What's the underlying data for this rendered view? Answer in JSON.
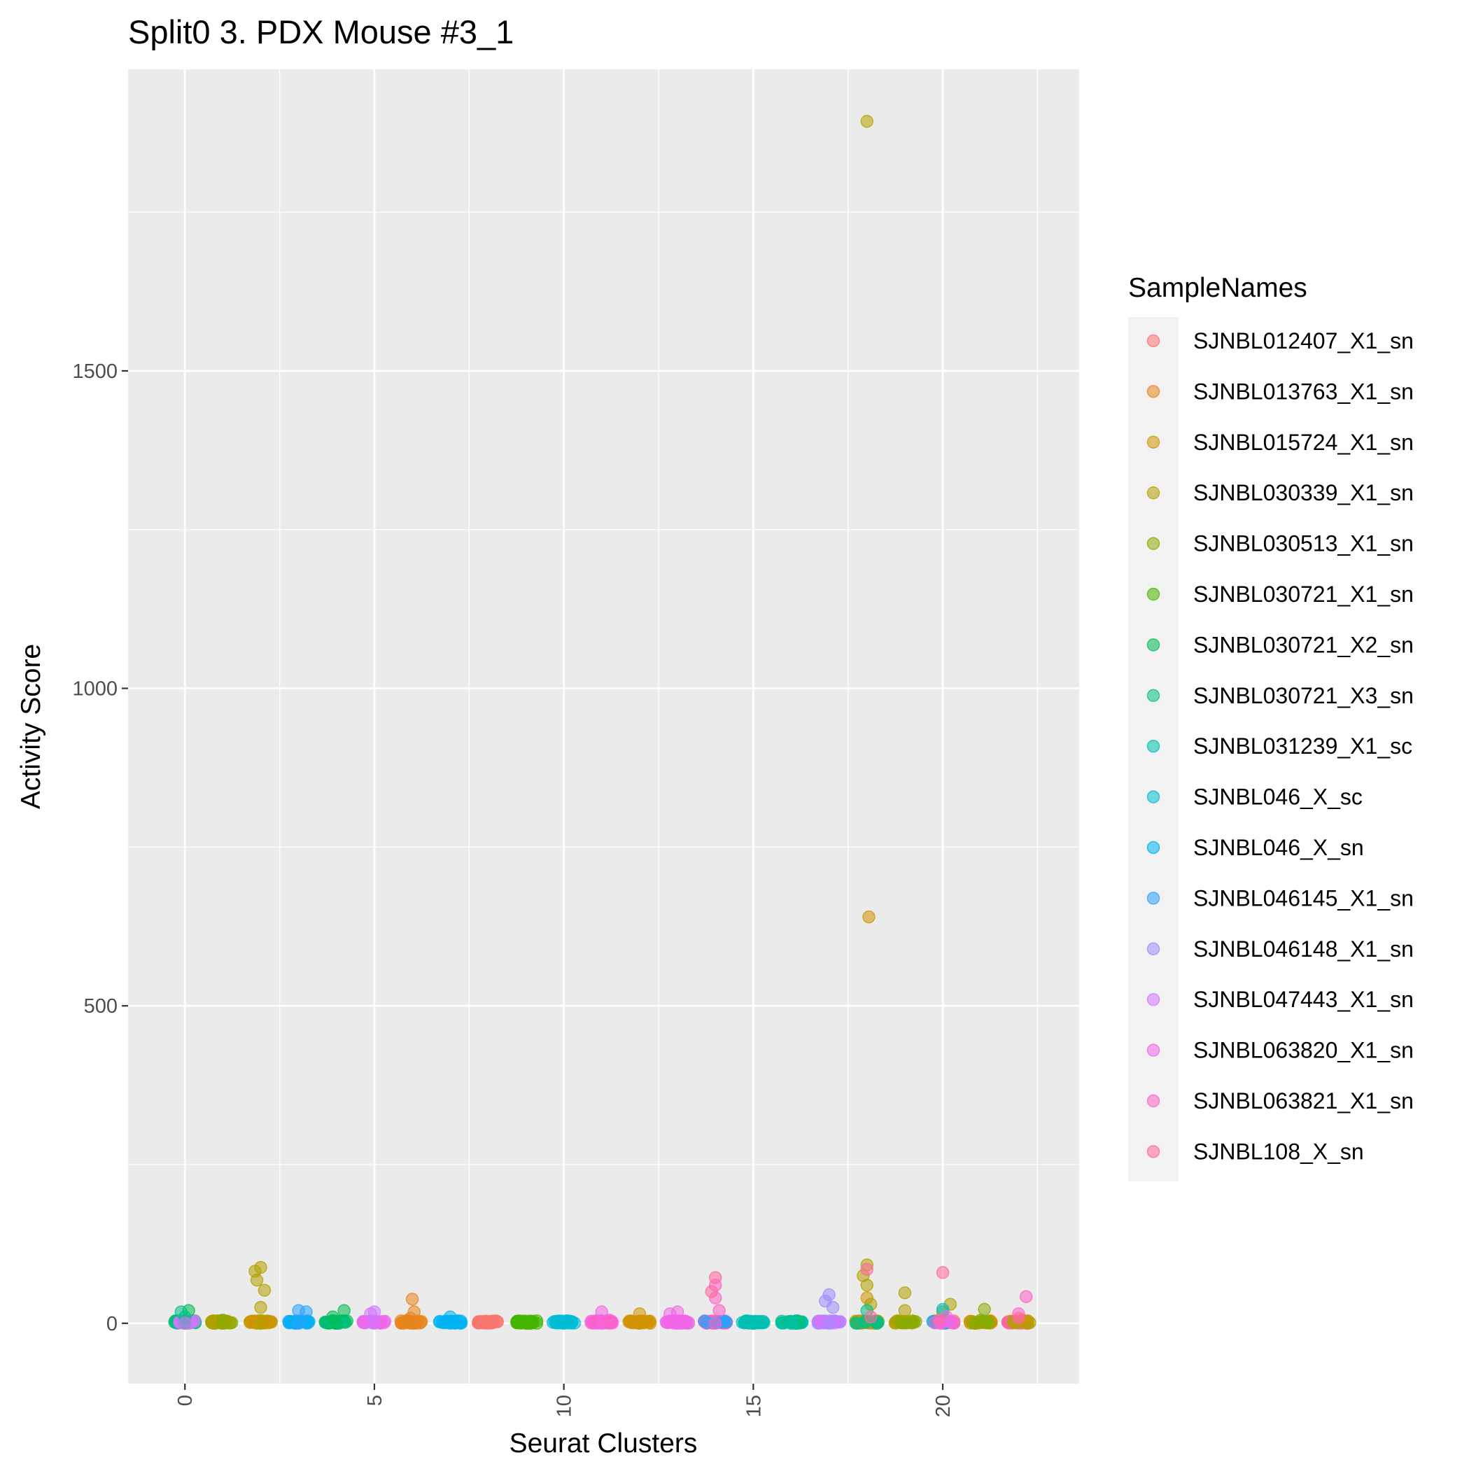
{
  "chart_data": {
    "type": "scatter",
    "title": "Split0 3. PDX Mouse #3_1",
    "xlabel": "Seurat Clusters",
    "ylabel": "Activity Score",
    "xlim": [
      -1.5,
      23.6
    ],
    "ylim": [
      -95,
      1975
    ],
    "x_ticks": [
      0,
      5,
      10,
      15,
      20
    ],
    "x_tick_labels": [
      "0",
      "5",
      "10",
      "15",
      "20"
    ],
    "y_ticks": [
      0,
      500,
      1000,
      1500
    ],
    "y_tick_labels": [
      "0",
      "500",
      "1000",
      "1500"
    ],
    "grid": true,
    "legend_position": "right",
    "legend_title": "SampleNames",
    "series": [
      {
        "name": "SJNBL012407_X1_sn",
        "color": "#F8766D",
        "points": [
          [
            8,
            0
          ],
          [
            8.1,
            1
          ],
          [
            7.9,
            2
          ]
        ]
      },
      {
        "name": "SJNBL013763_X1_sn",
        "color": "#E7851E",
        "points": [
          [
            6,
            0
          ],
          [
            6,
            38
          ],
          [
            6.05,
            18
          ],
          [
            5.95,
            8
          ]
        ]
      },
      {
        "name": "SJNBL015724_X1_sn",
        "color": "#D09400",
        "points": [
          [
            12,
            0
          ],
          [
            12,
            15
          ],
          [
            18.05,
            640
          ],
          [
            18,
            40
          ],
          [
            22.1,
            5
          ]
        ]
      },
      {
        "name": "SJNBL030339_X1_sn",
        "color": "#B2A100",
        "points": [
          [
            2,
            0
          ],
          [
            2,
            88
          ],
          [
            1.85,
            82
          ],
          [
            1.9,
            68
          ],
          [
            2.1,
            52
          ],
          [
            2,
            25
          ],
          [
            18,
            1893
          ],
          [
            18,
            92
          ],
          [
            17.9,
            75
          ],
          [
            18,
            60
          ],
          [
            18.1,
            30
          ],
          [
            19,
            48
          ],
          [
            19,
            20
          ],
          [
            20.2,
            30
          ]
        ]
      },
      {
        "name": "SJNBL030513_X1_sn",
        "color": "#89AC00",
        "points": [
          [
            1,
            0
          ],
          [
            1,
            5
          ],
          [
            21.1,
            22
          ],
          [
            21,
            5
          ],
          [
            20,
            18
          ]
        ]
      },
      {
        "name": "SJNBL030721_X1_sn",
        "color": "#45B500",
        "points": [
          [
            9,
            0
          ],
          [
            9,
            2
          ]
        ]
      },
      {
        "name": "SJNBL030721_X2_sn",
        "color": "#00BC51",
        "points": [
          [
            0,
            0
          ],
          [
            0.1,
            20
          ],
          [
            4,
            0
          ],
          [
            4.2,
            20
          ],
          [
            3.9,
            10
          ]
        ]
      },
      {
        "name": "SJNBL030721_X3_sn",
        "color": "#00C087",
        "points": [
          [
            0,
            10
          ],
          [
            -0.1,
            18
          ],
          [
            18,
            20
          ]
        ]
      },
      {
        "name": "SJNBL031239_X1_sc",
        "color": "#00C0B2",
        "points": [
          [
            15,
            0
          ],
          [
            16,
            0
          ]
        ]
      },
      {
        "name": "SJNBL046_X_sc",
        "color": "#00BCD6",
        "points": [
          [
            10,
            0
          ],
          [
            20,
            22
          ]
        ]
      },
      {
        "name": "SJNBL046_X_sn",
        "color": "#00B3F2",
        "points": [
          [
            7,
            0
          ],
          [
            7,
            10
          ]
        ]
      },
      {
        "name": "SJNBL046145_X1_sn",
        "color": "#29A3FF",
        "points": [
          [
            3,
            0
          ],
          [
            3,
            20
          ],
          [
            3.2,
            18
          ]
        ]
      },
      {
        "name": "SJNBL046148_X1_sn",
        "color": "#9C8DFF",
        "points": [
          [
            17,
            0
          ],
          [
            17,
            45
          ],
          [
            16.9,
            35
          ],
          [
            17.1,
            25
          ]
        ]
      },
      {
        "name": "SJNBL047443_X1_sn",
        "color": "#D277FF",
        "points": [
          [
            5,
            0
          ],
          [
            5,
            18
          ],
          [
            4.9,
            15
          ],
          [
            0,
            0
          ]
        ]
      },
      {
        "name": "SJNBL063820_X1_sn",
        "color": "#F166E8",
        "points": [
          [
            11,
            0
          ],
          [
            11,
            18
          ],
          [
            13,
            0
          ],
          [
            13,
            18
          ],
          [
            12.8,
            15
          ],
          [
            20.1,
            10
          ]
        ]
      },
      {
        "name": "SJNBL063821_X1_sn",
        "color": "#FF61C7",
        "points": [
          [
            14,
            0
          ],
          [
            14,
            60
          ],
          [
            14,
            40
          ],
          [
            14.1,
            20
          ],
          [
            22.2,
            42
          ],
          [
            22,
            15
          ],
          [
            11.2,
            5
          ]
        ]
      },
      {
        "name": "SJNBL108_X_sn",
        "color": "#FF689E",
        "points": [
          [
            14,
            72
          ],
          [
            13.9,
            50
          ],
          [
            20,
            80
          ],
          [
            18,
            85
          ],
          [
            22,
            8
          ],
          [
            19.9,
            5
          ],
          [
            18.1,
            10
          ]
        ]
      }
    ],
    "clusters": [
      {
        "x": 0,
        "colors": [
          "#00BC51",
          "#00C087",
          "#D277FF"
        ]
      },
      {
        "x": 1,
        "colors": [
          "#89AC00",
          "#B2A100"
        ]
      },
      {
        "x": 2,
        "colors": [
          "#B2A100",
          "#D09400"
        ]
      },
      {
        "x": 3,
        "colors": [
          "#29A3FF",
          "#00B3F2"
        ]
      },
      {
        "x": 4,
        "colors": [
          "#00BC51",
          "#00C087"
        ]
      },
      {
        "x": 5,
        "colors": [
          "#D277FF",
          "#F166E8"
        ]
      },
      {
        "x": 6,
        "colors": [
          "#E7851E"
        ]
      },
      {
        "x": 7,
        "colors": [
          "#00B3F2"
        ]
      },
      {
        "x": 8,
        "colors": [
          "#F8766D"
        ]
      },
      {
        "x": 9,
        "colors": [
          "#45B500"
        ]
      },
      {
        "x": 10,
        "colors": [
          "#00BCD6"
        ]
      },
      {
        "x": 11,
        "colors": [
          "#F166E8",
          "#FF61C7"
        ]
      },
      {
        "x": 12,
        "colors": [
          "#D09400"
        ]
      },
      {
        "x": 13,
        "colors": [
          "#F166E8"
        ]
      },
      {
        "x": 14,
        "colors": [
          "#FF61C7",
          "#FF689E",
          "#29A3FF"
        ]
      },
      {
        "x": 15,
        "colors": [
          "#00C0B2"
        ]
      },
      {
        "x": 16,
        "colors": [
          "#00C0B2",
          "#00C087"
        ]
      },
      {
        "x": 17,
        "colors": [
          "#9C8DFF",
          "#D277FF"
        ]
      },
      {
        "x": 18,
        "colors": [
          "#B2A100",
          "#D09400",
          "#00C087"
        ]
      },
      {
        "x": 19,
        "colors": [
          "#B2A100",
          "#89AC00"
        ]
      },
      {
        "x": 20,
        "colors": [
          "#F8766D",
          "#00BCD6",
          "#F166E8"
        ]
      },
      {
        "x": 21,
        "colors": [
          "#D09400",
          "#89AC00"
        ]
      },
      {
        "x": 22,
        "colors": [
          "#D09400",
          "#FF61C7",
          "#B2A100"
        ]
      }
    ]
  }
}
